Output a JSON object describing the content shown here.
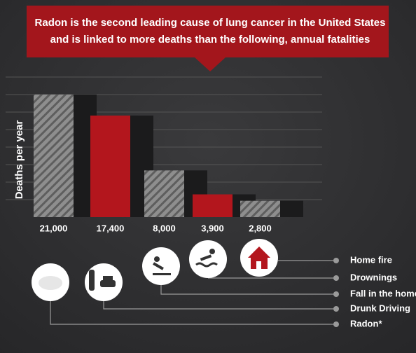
{
  "chart_data": {
    "type": "bar",
    "title": [
      "Radon is the second leading cause of lung cancer in the United States",
      "and is linked to more deaths than the following, annual fatalities"
    ],
    "y_label": "Deaths per year",
    "categories": [
      "Radon*",
      "Drunk Driving",
      "Fall in the home",
      "Drownings",
      "Home fire"
    ],
    "values": [
      21000,
      17400,
      8000,
      3900,
      2800
    ],
    "value_labels": [
      "21,000",
      "17,400",
      "8,000",
      "3,900",
      "2,800"
    ],
    "colors": [
      "#8e8e8e",
      "#b3161d",
      "#8e8e8e",
      "#b3161d",
      "#8e8e8e"
    ],
    "hatch": [
      true,
      false,
      true,
      false,
      true
    ],
    "ylim": [
      0,
      24000
    ]
  }
}
